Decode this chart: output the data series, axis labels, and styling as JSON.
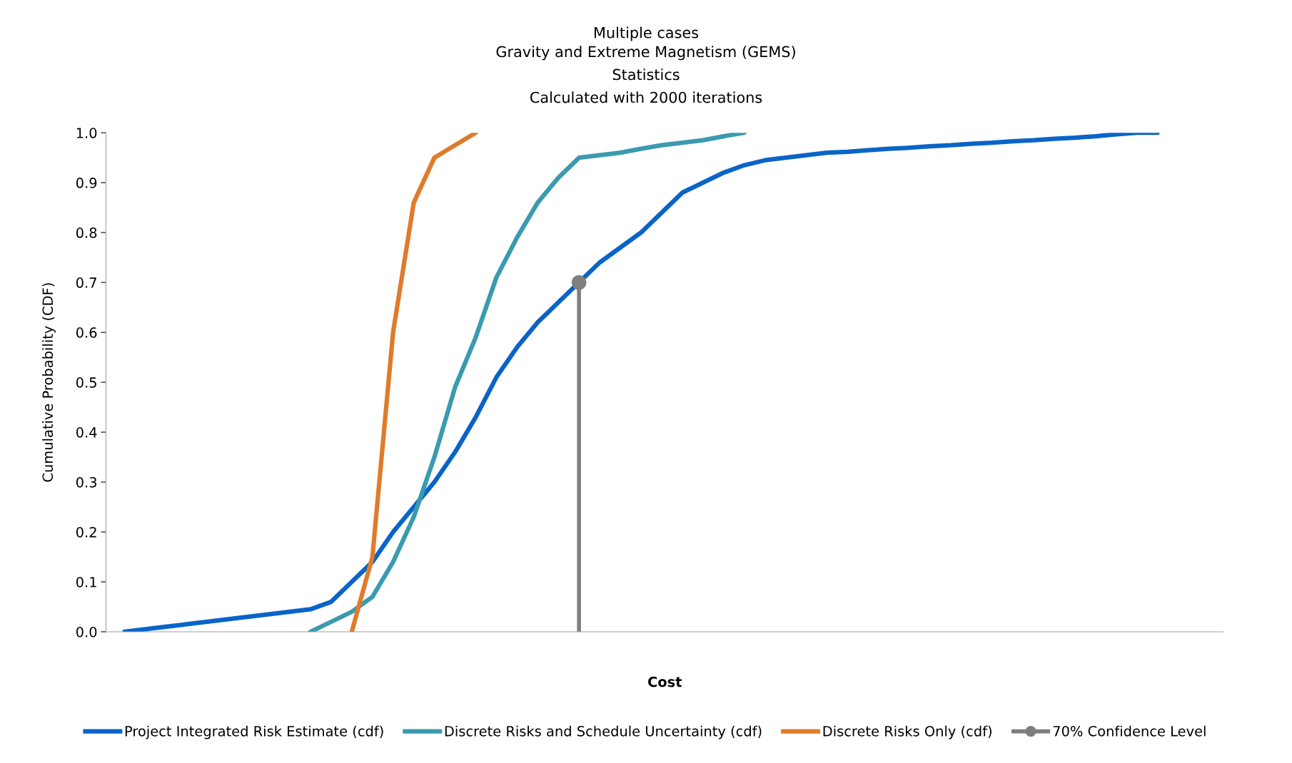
{
  "chart_data": {
    "type": "line",
    "title": "Multiple cases",
    "subtitle": "Gravity and Extreme Magnetism (GEMS)\nStatistics\nCalculated with 2000 iterations",
    "xlabel": "Cost",
    "ylabel": "Cumulative Probability (CDF)",
    "categories": [
      null,
      null,
      null,
      null,
      null,
      null,
      null,
      null,
      null,
      null,
      null,
      null,
      null,
      null,
      null,
      null,
      null,
      null,
      null,
      null,
      null,
      null,
      null,
      null,
      null,
      null,
      null,
      null,
      null,
      null,
      null,
      null,
      null,
      null,
      null,
      null,
      null,
      null,
      null,
      null,
      null,
      null,
      null,
      null,
      null,
      null,
      null,
      null,
      null,
      null,
      null
    ],
    "ylim": [
      0,
      1
    ],
    "yticks": [
      {
        "value": 0,
        "label": "0.0"
      },
      {
        "value": 0.1,
        "label": "0.1"
      },
      {
        "value": 0.2,
        "label": "0.2"
      },
      {
        "value": 0.3,
        "label": "0.3"
      },
      {
        "value": 0.4,
        "label": "0.4"
      },
      {
        "value": 0.5,
        "label": "0.5"
      },
      {
        "value": 0.6,
        "label": "0.6"
      },
      {
        "value": 0.7,
        "label": "0.7"
      },
      {
        "value": 0.8,
        "label": "0.8"
      },
      {
        "value": 0.9,
        "label": "0.9"
      },
      {
        "value": 1,
        "label": "1.0"
      }
    ],
    "tick_labels": "y",
    "legend": "bottom",
    "series": [
      {
        "name": "Project Integrated Risk Estimate (cdf)",
        "color": "#0a64c8",
        "values": [
          0,
          0.005,
          0.01,
          0.015,
          0.02,
          0.025,
          0.03,
          0.035,
          0.04,
          0.045,
          0.06,
          0.1,
          0.14,
          0.2,
          0.25,
          0.3,
          0.36,
          0.43,
          0.51,
          0.57,
          0.62,
          0.66,
          0.7,
          0.74,
          0.77,
          0.8,
          0.84,
          0.88,
          0.9,
          0.92,
          0.935,
          0.945,
          0.95,
          0.955,
          0.96,
          0.962,
          0.965,
          0.968,
          0.97,
          0.973,
          0.975,
          0.978,
          0.98,
          0.983,
          0.985,
          0.988,
          0.99,
          0.993,
          0.997,
          1.0,
          1.0
        ]
      },
      {
        "name": "Discrete Risks and Schedule Uncertainty (cdf)",
        "color": "#3a9ab0",
        "values": [
          null,
          null,
          null,
          null,
          null,
          null,
          null,
          null,
          null,
          0,
          0.02,
          0.04,
          0.07,
          0.14,
          0.23,
          0.35,
          0.49,
          0.59,
          0.71,
          0.79,
          0.86,
          0.91,
          0.95,
          0.955,
          0.96,
          0.968,
          0.975,
          0.98,
          0.985,
          0.993,
          1.0,
          null,
          null,
          null,
          null,
          null,
          null,
          null,
          null,
          null,
          null,
          null,
          null,
          null,
          null,
          null,
          null,
          null,
          null,
          null,
          null
        ]
      },
      {
        "name": "Discrete Risks Only (cdf)",
        "color": "#e07b2a",
        "values": [
          null,
          null,
          null,
          null,
          null,
          null,
          null,
          null,
          null,
          null,
          null,
          0,
          0.15,
          0.6,
          0.86,
          0.95,
          0.975,
          1.0,
          null,
          null,
          null,
          null,
          null,
          null,
          null,
          null,
          null,
          null,
          null,
          null,
          null,
          null,
          null,
          null,
          null,
          null,
          null,
          null,
          null,
          null,
          null,
          null,
          null,
          null,
          null,
          null,
          null,
          null,
          null,
          null,
          null
        ]
      },
      {
        "name": "70% Confidence Level",
        "type": "lollipop",
        "marker": "circle",
        "color": "#7f7f7f",
        "values": [
          null,
          null,
          null,
          null,
          null,
          null,
          null,
          null,
          null,
          null,
          null,
          null,
          null,
          null,
          null,
          null,
          null,
          null,
          null,
          null,
          null,
          null,
          0.7,
          null,
          null,
          null,
          null,
          null,
          null,
          null,
          null,
          null,
          null,
          null,
          null,
          null,
          null,
          null,
          null,
          null,
          null,
          null,
          null,
          null,
          null,
          null,
          null,
          null,
          null,
          null,
          null
        ]
      }
    ]
  }
}
